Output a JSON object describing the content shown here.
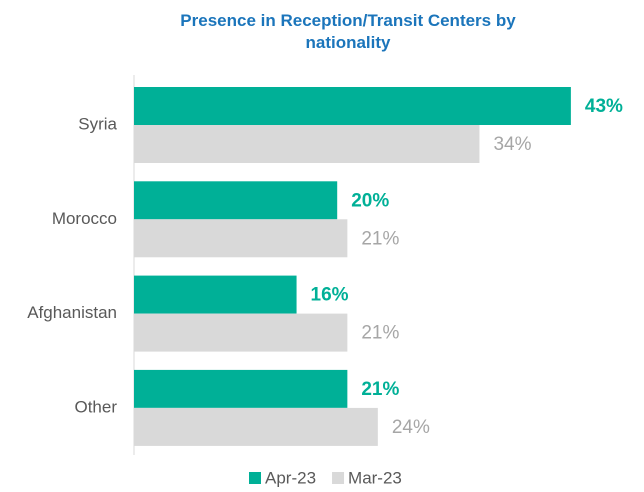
{
  "chart_data": {
    "type": "bar",
    "orientation": "horizontal",
    "title": "Presence in Reception/Transit Centers by nationality",
    "categories": [
      "Syria",
      "Morocco",
      "Afghanistan",
      "Other"
    ],
    "series": [
      {
        "name": "Apr-23",
        "color": "#00b097",
        "values": [
          43,
          20,
          16,
          21
        ],
        "value_labels": [
          "43%",
          "20%",
          "16%",
          "21%"
        ]
      },
      {
        "name": "Mar-23",
        "color": "#d9d9d9",
        "values": [
          34,
          21,
          21,
          24
        ],
        "value_labels": [
          "34%",
          "21%",
          "21%",
          "24%"
        ]
      }
    ],
    "legend": "bottom"
  }
}
